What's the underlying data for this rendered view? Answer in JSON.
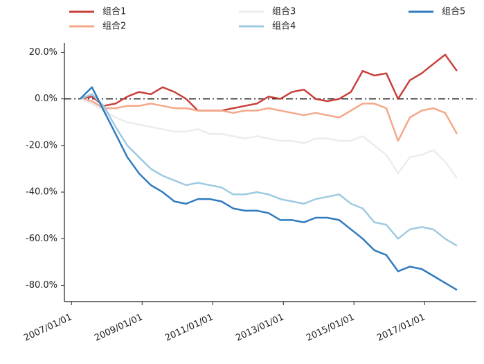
{
  "chart_data": {
    "type": "line",
    "x": [
      "2007-04-01",
      "2007-08-01",
      "2007-12-01",
      "2008-04-01",
      "2008-08-01",
      "2008-12-01",
      "2009-04-01",
      "2009-08-01",
      "2009-12-01",
      "2010-04-01",
      "2010-08-01",
      "2010-12-01",
      "2011-04-01",
      "2011-08-01",
      "2011-12-01",
      "2012-04-01",
      "2012-08-01",
      "2012-12-01",
      "2013-04-01",
      "2013-08-01",
      "2013-12-01",
      "2014-04-01",
      "2014-08-01",
      "2014-12-01",
      "2015-04-01",
      "2015-08-01",
      "2015-12-01",
      "2016-04-01",
      "2016-08-01",
      "2016-12-01",
      "2017-04-01",
      "2017-08-01",
      "2017-12-01"
    ],
    "series": [
      {
        "name": "组合1",
        "color": "#c8403a",
        "values": [
          0,
          1,
          -3,
          -2,
          1,
          3,
          2,
          5,
          3,
          0,
          -5,
          -5,
          -5,
          -4,
          -3,
          -2,
          1,
          0,
          3,
          4,
          0,
          -1,
          0,
          3,
          12,
          10,
          11,
          0,
          8,
          11,
          15,
          19,
          12
        ]
      },
      {
        "name": "组合2",
        "color": "#f4a889",
        "values": [
          0,
          -1,
          -4,
          -4,
          -3,
          -3,
          -2,
          -3,
          -4,
          -4,
          -5,
          -5,
          -5,
          -6,
          -5,
          -5,
          -4,
          -5,
          -6,
          -7,
          -6,
          -7,
          -8,
          -5,
          -2,
          -2,
          -4,
          -18,
          -8,
          -5,
          -4,
          -6,
          -15
        ]
      },
      {
        "name": "组合3",
        "color": "#ececec",
        "values": [
          0,
          -2,
          -5,
          -8,
          -10,
          -11,
          -12,
          -13,
          -14,
          -14,
          -13,
          -15,
          -15,
          -16,
          -17,
          -16,
          -17,
          -18,
          -18,
          -19,
          -17,
          -17,
          -18,
          -18,
          -16,
          -20,
          -24,
          -32,
          -25,
          -24,
          -22,
          -27,
          -34
        ]
      },
      {
        "name": "组合4",
        "color": "#9ecae1",
        "values": [
          0,
          2,
          -3,
          -12,
          -20,
          -25,
          -30,
          -33,
          -35,
          -37,
          -36,
          -37,
          -38,
          -41,
          -41,
          -40,
          -41,
          -43,
          -44,
          -45,
          -43,
          -42,
          -41,
          -45,
          -47,
          -53,
          -54,
          -60,
          -56,
          -55,
          -56,
          -60,
          -63
        ]
      },
      {
        "name": "组合5",
        "color": "#2f7bbf",
        "values": [
          0,
          5,
          -5,
          -15,
          -25,
          -32,
          -37,
          -40,
          -44,
          -45,
          -43,
          -43,
          -44,
          -47,
          -48,
          -48,
          -49,
          -52,
          -52,
          -53,
          -51,
          -51,
          -52,
          -56,
          -60,
          -65,
          -67,
          -74,
          -72,
          -73,
          -76,
          -79,
          -82
        ]
      }
    ],
    "xlim": [
      "2006-10-20",
      "2018-06-20"
    ],
    "xticks": [
      {
        "value": "2007-01-01",
        "label": "2007/01/01"
      },
      {
        "value": "2009-01-01",
        "label": "2009/01/01"
      },
      {
        "value": "2011-01-01",
        "label": "2011/01/01"
      },
      {
        "value": "2013-01-01",
        "label": "2013/01/01"
      },
      {
        "value": "2015-01-01",
        "label": "2015/01/01"
      },
      {
        "value": "2017-01-01",
        "label": "2017/01/01"
      }
    ],
    "ylim": [
      -87,
      24
    ],
    "yticks": [
      {
        "value": 20,
        "label": "20.0%"
      },
      {
        "value": 0,
        "label": "0.0%"
      },
      {
        "value": -20,
        "label": "-20.0%"
      },
      {
        "value": -40,
        "label": "-40.0%"
      },
      {
        "value": -60,
        "label": "-60.0%"
      },
      {
        "value": -80,
        "label": "-80.0%"
      }
    ],
    "reference_line": 0,
    "legend": "top"
  }
}
